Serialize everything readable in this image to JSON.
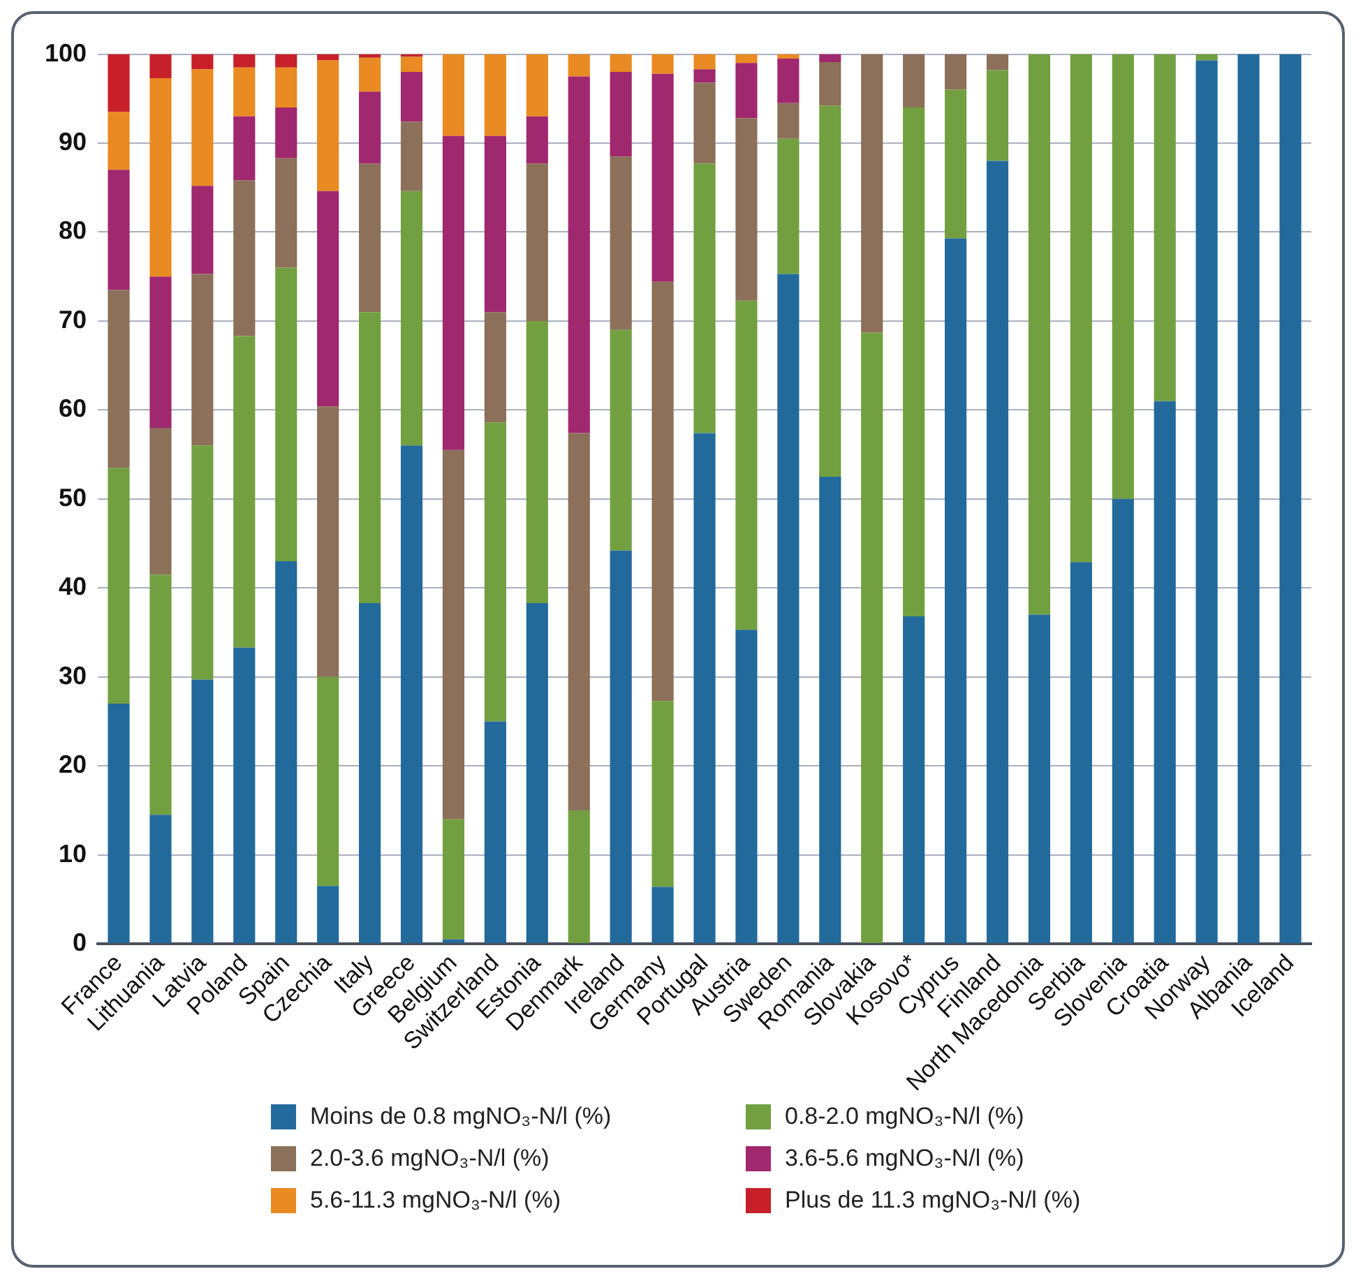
{
  "chart_data": {
    "type": "bar",
    "stacked": true,
    "categories": [
      "France",
      "Lithuania",
      "Latvia",
      "Poland",
      "Spain",
      "Czechia",
      "Italy",
      "Greece",
      "Belgium",
      "Switzerland",
      "Estonia",
      "Denmark",
      "Ireland",
      "Germany",
      "Portugal",
      "Austria",
      "Sweden",
      "Romania",
      "Slovakia",
      "Kosovo*",
      "Cyprus",
      "Finland",
      "North Macedonia",
      "Serbia",
      "Slovenia",
      "Croatia",
      "Norway",
      "Albania",
      "Iceland"
    ],
    "series": [
      {
        "name": "Moins de 0.8 mgNO₃-N/l (%)",
        "color": "#236a9c",
        "values": [
          27,
          14.5,
          29.7,
          33.3,
          43,
          6.5,
          38.3,
          56,
          0.5,
          25,
          38.3,
          0,
          44.2,
          6.4,
          57.4,
          35.3,
          75.3,
          52.5,
          0,
          36.8,
          79.3,
          88,
          37,
          42.9,
          50,
          61,
          99.3,
          100,
          100
        ]
      },
      {
        "name": "0.8-2.0 mgNO₃-N/l (%)",
        "color": "#72a040",
        "values": [
          26.5,
          27,
          26.3,
          35,
          33,
          23.5,
          32.7,
          28.6,
          13.5,
          33.6,
          31.7,
          15,
          24.8,
          20.9,
          30.3,
          37,
          15.2,
          41.7,
          68.7,
          57.2,
          16.7,
          10.2,
          63,
          57.1,
          50,
          39,
          0.7,
          0,
          0
        ]
      },
      {
        "name": "2.0-3.6 mgNO₃-N/l (%)",
        "color": "#8c7059",
        "values": [
          20,
          16.5,
          19.3,
          17.5,
          12.3,
          30.4,
          16.7,
          7.8,
          41.5,
          12.4,
          17.7,
          42.4,
          19.5,
          47.1,
          9.1,
          20.5,
          4,
          4.9,
          31.3,
          6,
          4,
          1.8,
          0,
          0,
          0,
          0,
          0,
          0,
          0
        ]
      },
      {
        "name": "3.6-5.6 mgNO₃-N/l (%)",
        "color": "#a0286e",
        "values": [
          13.5,
          17,
          9.9,
          7.2,
          5.7,
          24.2,
          8.1,
          5.6,
          35.3,
          19.8,
          5.3,
          40.1,
          9.5,
          23.4,
          1.5,
          6.2,
          5,
          0.9,
          0,
          0,
          0,
          0,
          0,
          0,
          0,
          0,
          0,
          0,
          0
        ]
      },
      {
        "name": "5.6-11.3 mgNO₃-N/l (%)",
        "color": "#ea8a22",
        "values": [
          6.5,
          22.3,
          13.1,
          5.5,
          4.5,
          14.7,
          3.8,
          1.7,
          9.2,
          9.2,
          7,
          2.5,
          2,
          2.2,
          1.7,
          1,
          0.5,
          0,
          0,
          0,
          0,
          0,
          0,
          0,
          0,
          0,
          0,
          0,
          0
        ]
      },
      {
        "name": "Plus de 11.3 mgNO₃-N/l (%)",
        "color": "#c8202a",
        "values": [
          6.5,
          2.7,
          1.7,
          1.5,
          1.5,
          0.7,
          0.4,
          0.3,
          0,
          0,
          0,
          0,
          0,
          0,
          0,
          0,
          0,
          0,
          0,
          0,
          0,
          0,
          0,
          0,
          0,
          0,
          0,
          0,
          0
        ]
      }
    ],
    "ylim": [
      0,
      100
    ],
    "yticks": [
      0,
      10,
      20,
      30,
      40,
      50,
      60,
      70,
      80,
      90,
      100
    ],
    "grid": "y",
    "legend": "bottom"
  }
}
